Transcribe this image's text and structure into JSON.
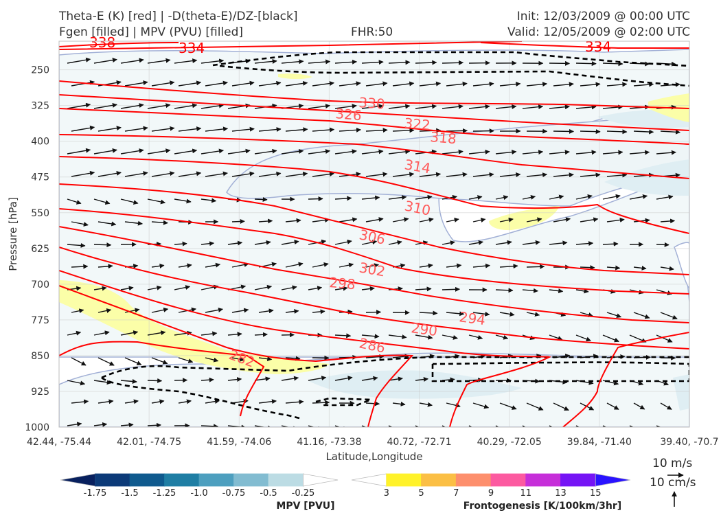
{
  "header": {
    "title_line1": "Theta-E (K) [red] | -D(theta-E)/DZ-[black]",
    "title_line2": "Fgen [filled] | MPV (PVU) [filled]",
    "fhr": "FHR:50",
    "init": "Init: 12/03/2009 @ 00:00 UTC",
    "valid": "Valid: 12/05/2009 @ 02:00 UTC"
  },
  "chart_data": {
    "type": "cross-section",
    "xlabel": "Latitude,Longitude",
    "ylabel": "Pressure [hPa]",
    "x_ticks": [
      "42.44, -75.44",
      "42.01, -74.75",
      "41.59, -74.06",
      "41.16, -73.38",
      "40.72, -72.71",
      "40.29, -72.05",
      "39.84, -71.40",
      "39.40, -70.7"
    ],
    "y_ticks": [
      250,
      325,
      400,
      475,
      550,
      625,
      700,
      775,
      850,
      925,
      1000
    ],
    "ylim": [
      1000,
      190
    ],
    "y_inverted": true,
    "grid": true,
    "theta_e_labels": [
      {
        "value": "338",
        "x_frac": 0.09,
        "p": 193
      },
      {
        "value": "334",
        "x_frac": 0.25,
        "p": 198
      },
      {
        "value": "334",
        "x_frac": 0.87,
        "p": 198
      },
      {
        "value": "330",
        "x_frac": 0.5,
        "p": 338
      },
      {
        "value": "326",
        "x_frac": 0.46,
        "p": 352
      },
      {
        "value": "322",
        "x_frac": 0.57,
        "p": 370
      },
      {
        "value": "318",
        "x_frac": 0.61,
        "p": 390
      },
      {
        "value": "314",
        "x_frac": 0.57,
        "p": 438
      },
      {
        "value": "310",
        "x_frac": 0.57,
        "p": 543
      },
      {
        "value": "306",
        "x_frac": 0.5,
        "p": 610
      },
      {
        "value": "302",
        "x_frac": 0.5,
        "p": 677
      },
      {
        "value": "298",
        "x_frac": 0.45,
        "p": 703
      },
      {
        "value": "294",
        "x_frac": 0.66,
        "p": 790
      },
      {
        "value": "290",
        "x_frac": 0.58,
        "p": 802
      },
      {
        "value": "286",
        "x_frac": 0.5,
        "p": 828
      },
      {
        "value": "282",
        "x_frac": 0.29,
        "p": 850
      }
    ],
    "colorbars": [
      {
        "title": "MPV [PVU]",
        "ticks": [
          "-1.75",
          "-1.5",
          "-1.25",
          "-1.0",
          "-0.75",
          "-0.5",
          "-0.25"
        ],
        "colors": [
          "#08205e",
          "#0c3a78",
          "#0f5a8e",
          "#1f7ea4",
          "#4d9fbf",
          "#82bcd1",
          "#bcdce4",
          "#ffffff"
        ]
      },
      {
        "title": "Frontogenesis [K/100km/3hr]",
        "ticks": [
          "3",
          "5",
          "7",
          "9",
          "11",
          "13",
          "15"
        ],
        "colors": [
          "#ffffff",
          "#fff22a",
          "#fbbf45",
          "#fd8f6d",
          "#fc5aa0",
          "#c62fd9",
          "#7514f5",
          "#2a13ff"
        ]
      }
    ],
    "reference_vectors": {
      "horizontal": "10 m/s",
      "vertical": "10 cm/s"
    }
  }
}
